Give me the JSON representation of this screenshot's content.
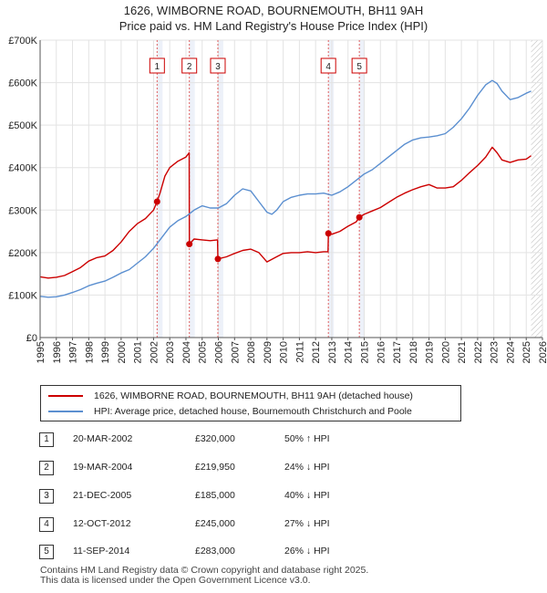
{
  "chart_data": {
    "type": "line",
    "title": "1626, WIMBORNE ROAD, BOURNEMOUTH, BH11 9AH",
    "subtitle": "Price paid vs. HM Land Registry's House Price Index (HPI)",
    "xlabel": "",
    "ylabel": "",
    "xlim": [
      1995,
      2026
    ],
    "ylim": [
      0,
      700000
    ],
    "y_ticks": [
      0,
      100000,
      200000,
      300000,
      400000,
      500000,
      600000,
      700000
    ],
    "y_tick_labels": [
      "£0",
      "£100K",
      "£200K",
      "£300K",
      "£400K",
      "£500K",
      "£600K",
      "£700K"
    ],
    "x_ticks": [
      1995,
      1996,
      1997,
      1998,
      1999,
      2000,
      2001,
      2002,
      2003,
      2004,
      2005,
      2006,
      2007,
      2008,
      2009,
      2010,
      2011,
      2012,
      2013,
      2014,
      2015,
      2016,
      2017,
      2018,
      2019,
      2020,
      2021,
      2022,
      2023,
      2024,
      2025,
      2026
    ],
    "grid": true,
    "legend_position": "below",
    "series": [
      {
        "name": "1626, WIMBORNE ROAD, BOURNEMOUTH, BH11 9AH (detached house)",
        "color": "#cc0000",
        "x": [
          1995.0,
          1995.5,
          1996.0,
          1996.5,
          1997.0,
          1997.5,
          1998.0,
          1998.5,
          1999.0,
          1999.5,
          2000.0,
          2000.5,
          2001.0,
          2001.5,
          2002.0,
          2002.22,
          2002.4,
          2002.7,
          2003.0,
          2003.5,
          2004.0,
          2004.2,
          2004.21,
          2004.5,
          2005.0,
          2005.5,
          2005.95,
          2005.97,
          2006.5,
          2007.0,
          2007.5,
          2008.0,
          2008.5,
          2009.0,
          2009.5,
          2010.0,
          2010.5,
          2011.0,
          2011.5,
          2012.0,
          2012.5,
          2012.77,
          2012.79,
          2013.0,
          2013.5,
          2014.0,
          2014.5,
          2014.7,
          2015.0,
          2015.5,
          2016.0,
          2016.5,
          2017.0,
          2017.5,
          2018.0,
          2018.5,
          2019.0,
          2019.5,
          2020.0,
          2020.5,
          2021.0,
          2021.5,
          2022.0,
          2022.5,
          2022.9,
          2023.2,
          2023.5,
          2024.0,
          2024.5,
          2025.0,
          2025.3
        ],
        "values": [
          143000,
          140000,
          142000,
          146000,
          155000,
          165000,
          180000,
          188000,
          192000,
          205000,
          225000,
          250000,
          268000,
          280000,
          300000,
          320000,
          340000,
          380000,
          400000,
          415000,
          425000,
          435000,
          219950,
          232000,
          230000,
          228000,
          230000,
          185000,
          190000,
          198000,
          205000,
          208000,
          200000,
          178000,
          188000,
          198000,
          200000,
          200000,
          202000,
          200000,
          202000,
          202000,
          245000,
          243000,
          250000,
          262000,
          272000,
          283000,
          290000,
          298000,
          306000,
          318000,
          330000,
          340000,
          348000,
          355000,
          360000,
          352000,
          352000,
          355000,
          370000,
          388000,
          405000,
          425000,
          448000,
          435000,
          418000,
          412000,
          418000,
          420000,
          428000
        ]
      },
      {
        "name": "HPI: Average price, detached house, Bournemouth Christchurch and Poole",
        "color": "#5b8fd0",
        "x": [
          1995.0,
          1995.5,
          1996.0,
          1996.5,
          1997.0,
          1997.5,
          1998.0,
          1998.5,
          1999.0,
          1999.5,
          2000.0,
          2000.5,
          2001.0,
          2001.5,
          2002.0,
          2002.5,
          2003.0,
          2003.5,
          2004.0,
          2004.5,
          2005.0,
          2005.5,
          2006.0,
          2006.5,
          2007.0,
          2007.5,
          2008.0,
          2008.5,
          2009.0,
          2009.3,
          2009.6,
          2010.0,
          2010.5,
          2011.0,
          2011.5,
          2012.0,
          2012.5,
          2013.0,
          2013.5,
          2014.0,
          2014.5,
          2015.0,
          2015.5,
          2016.0,
          2016.5,
          2017.0,
          2017.5,
          2018.0,
          2018.5,
          2019.0,
          2019.5,
          2020.0,
          2020.5,
          2021.0,
          2021.5,
          2022.0,
          2022.5,
          2022.9,
          2023.2,
          2023.5,
          2024.0,
          2024.5,
          2025.0,
          2025.3
        ],
        "values": [
          97000,
          95000,
          96000,
          100000,
          106000,
          113000,
          122000,
          128000,
          133000,
          142000,
          152000,
          160000,
          175000,
          190000,
          210000,
          235000,
          260000,
          275000,
          285000,
          300000,
          310000,
          305000,
          305000,
          315000,
          335000,
          350000,
          345000,
          320000,
          295000,
          290000,
          300000,
          320000,
          330000,
          335000,
          338000,
          338000,
          340000,
          335000,
          343000,
          355000,
          370000,
          385000,
          395000,
          410000,
          425000,
          440000,
          455000,
          465000,
          470000,
          472000,
          475000,
          480000,
          495000,
          515000,
          540000,
          570000,
          595000,
          605000,
          598000,
          580000,
          560000,
          565000,
          575000,
          580000
        ]
      }
    ],
    "markers": [
      {
        "label": "1",
        "x": 2002.22,
        "y": 320000
      },
      {
        "label": "2",
        "x": 2004.21,
        "y": 219950
      },
      {
        "label": "3",
        "x": 2005.97,
        "y": 185000
      },
      {
        "label": "4",
        "x": 2012.79,
        "y": 245000
      },
      {
        "label": "5",
        "x": 2014.7,
        "y": 283000
      }
    ],
    "hatch_from": 2025.3
  },
  "legend": {
    "property_label": "1626, WIMBORNE ROAD, BOURNEMOUTH, BH11 9AH (detached house)",
    "hpi_label": "HPI: Average price, detached house, Bournemouth Christchurch and Poole"
  },
  "transactions": [
    {
      "num": "1",
      "date": "20-MAR-2002",
      "price": "£320,000",
      "hpi": "50% ↑ HPI"
    },
    {
      "num": "2",
      "date": "19-MAR-2004",
      "price": "£219,950",
      "hpi": "24% ↓ HPI"
    },
    {
      "num": "3",
      "date": "21-DEC-2005",
      "price": "£185,000",
      "hpi": "40% ↓ HPI"
    },
    {
      "num": "4",
      "date": "12-OCT-2012",
      "price": "£245,000",
      "hpi": "27% ↓ HPI"
    },
    {
      "num": "5",
      "date": "11-SEP-2014",
      "price": "£283,000",
      "hpi": "26% ↓ HPI"
    }
  ],
  "footer": {
    "line1": "Contains HM Land Registry data © Crown copyright and database right 2025.",
    "line2": "This data is licensed under the Open Government Licence v3.0."
  }
}
